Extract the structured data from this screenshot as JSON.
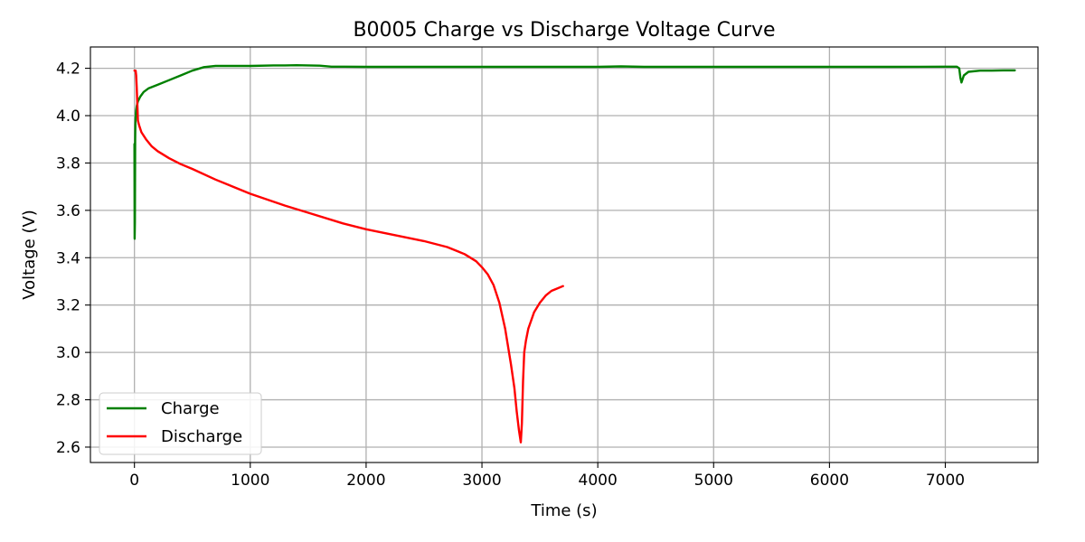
{
  "chart_data": {
    "type": "line",
    "title": "B0005 Charge vs Discharge Voltage Curve",
    "xlabel": "Time (s)",
    "ylabel": "Voltage (V)",
    "xlim": [
      -380,
      7800
    ],
    "ylim": [
      2.535,
      4.29
    ],
    "xticks": [
      0,
      1000,
      2000,
      3000,
      4000,
      5000,
      6000,
      7000
    ],
    "yticks": [
      2.6,
      2.8,
      3.0,
      3.2,
      3.4,
      3.6,
      3.8,
      4.0,
      4.2
    ],
    "ytick_labels": [
      "2.6",
      "2.8",
      "3.0",
      "3.2",
      "3.4",
      "3.6",
      "3.8",
      "4.0",
      "4.2"
    ],
    "grid": true,
    "legend_position": "lower-left",
    "series": [
      {
        "name": "Charge",
        "color": "#008000",
        "x": [
          0,
          2,
          4,
          6,
          8,
          10,
          14,
          20,
          30,
          50,
          80,
          120,
          200,
          300,
          400,
          500,
          600,
          700,
          800,
          1000,
          1200,
          1300,
          1400,
          1500,
          1600,
          1700,
          1800,
          2000,
          2500,
          3000,
          3500,
          4000,
          4200,
          4400,
          5000,
          5500,
          6000,
          6500,
          7000,
          7100,
          7120,
          7130,
          7140,
          7160,
          7200,
          7300,
          7400,
          7500,
          7600
        ],
        "y": [
          3.88,
          3.48,
          3.55,
          3.9,
          3.96,
          3.99,
          4.02,
          4.04,
          4.06,
          4.08,
          4.1,
          4.115,
          4.13,
          4.15,
          4.17,
          4.19,
          4.205,
          4.21,
          4.21,
          4.21,
          4.212,
          4.212,
          4.213,
          4.212,
          4.211,
          4.207,
          4.207,
          4.206,
          4.206,
          4.206,
          4.206,
          4.206,
          4.208,
          4.206,
          4.206,
          4.206,
          4.206,
          4.206,
          4.207,
          4.207,
          4.2,
          4.16,
          4.14,
          4.17,
          4.185,
          4.19,
          4.19,
          4.191,
          4.191
        ]
      },
      {
        "name": "Discharge",
        "color": "#ff0000",
        "x": [
          0,
          10,
          15,
          20,
          25,
          30,
          40,
          60,
          100,
          150,
          200,
          300,
          400,
          500,
          700,
          1000,
          1300,
          1500,
          1800,
          2000,
          2300,
          2500,
          2700,
          2850,
          2950,
          3000,
          3050,
          3100,
          3150,
          3200,
          3250,
          3280,
          3300,
          3320,
          3335,
          3345,
          3355,
          3365,
          3380,
          3400,
          3450,
          3500,
          3550,
          3600,
          3650,
          3700
        ],
        "y": [
          4.19,
          4.19,
          4.17,
          4.12,
          4.05,
          3.98,
          3.96,
          3.93,
          3.9,
          3.87,
          3.85,
          3.82,
          3.795,
          3.775,
          3.73,
          3.67,
          3.62,
          3.59,
          3.545,
          3.52,
          3.49,
          3.47,
          3.445,
          3.415,
          3.385,
          3.36,
          3.33,
          3.285,
          3.21,
          3.1,
          2.95,
          2.85,
          2.75,
          2.67,
          2.62,
          2.7,
          2.88,
          3.0,
          3.05,
          3.1,
          3.17,
          3.21,
          3.24,
          3.26,
          3.27,
          3.28
        ]
      }
    ]
  }
}
